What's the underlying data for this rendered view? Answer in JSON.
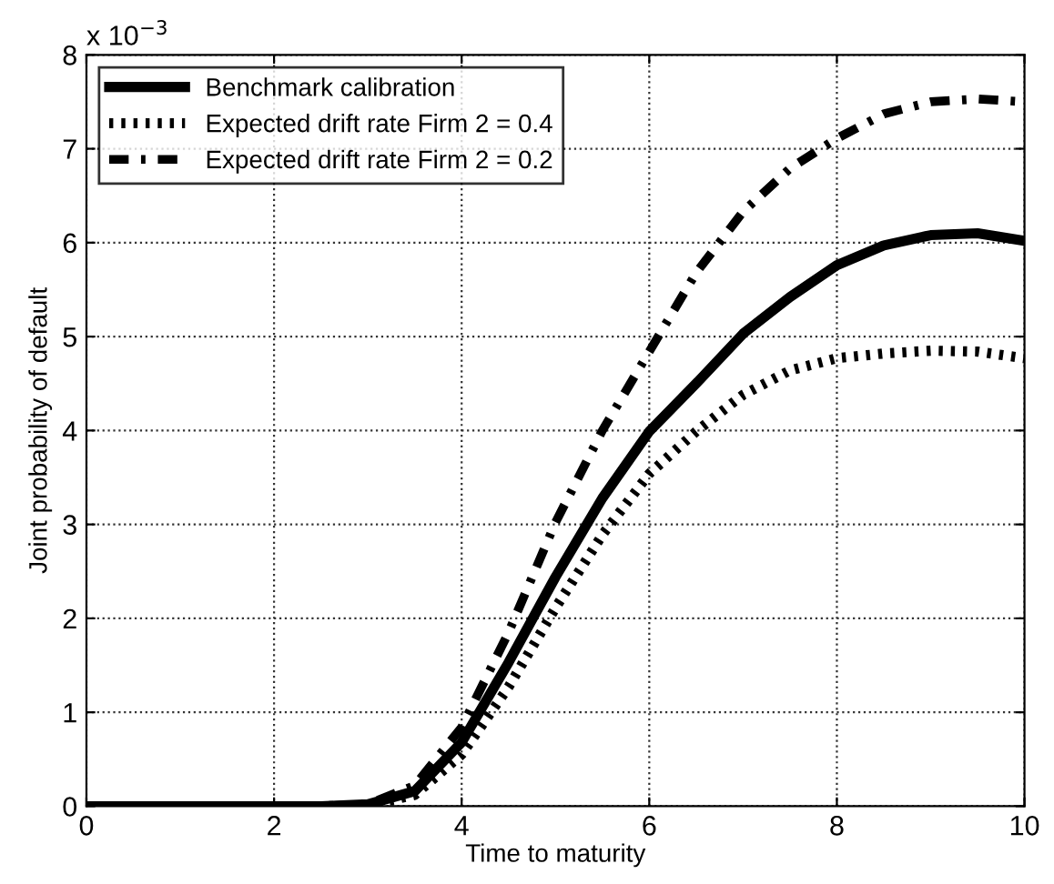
{
  "chart_data": {
    "type": "line",
    "xlabel": "Time to maturity",
    "ylabel": "Joint probability of default",
    "annotations": [
      "x 10$^{−3}$"
    ],
    "x": [
      0,
      1,
      2,
      2.5,
      3,
      3.5,
      4,
      4.5,
      5,
      5.5,
      6,
      6.5,
      7,
      7.5,
      8,
      8.5,
      9,
      9.5,
      10
    ],
    "series": [
      {
        "name": "Benchmark calibration",
        "color": "#000000",
        "line_style": "solid",
        "values": [
          0,
          0,
          0,
          0,
          0.02,
          0.16,
          0.68,
          1.53,
          2.44,
          3.28,
          3.99,
          4.5,
          5.03,
          5.42,
          5.76,
          5.97,
          6.08,
          6.1,
          6.02
        ]
      },
      {
        "name": "Expected drift rate Firm 2 = 0.4",
        "color": "#000000",
        "line_style": "dotted",
        "values": [
          0,
          0,
          0,
          0,
          0.01,
          0.12,
          0.55,
          1.27,
          2.11,
          2.89,
          3.54,
          3.99,
          4.38,
          4.64,
          4.77,
          4.82,
          4.85,
          4.84,
          4.77
        ]
      },
      {
        "name": "Expected drift rate Firm 2 = 0.2",
        "color": "#000000",
        "line_style": "dashdot",
        "values": [
          0,
          0,
          0,
          0,
          0.02,
          0.22,
          0.84,
          1.85,
          3.02,
          4.0,
          4.84,
          5.68,
          6.33,
          6.79,
          7.11,
          7.37,
          7.5,
          7.53,
          7.5
        ]
      }
    ],
    "xlim": [
      0,
      10
    ],
    "xticks": [
      0,
      2,
      4,
      6,
      8,
      10
    ],
    "ylim": [
      0,
      8
    ],
    "yticks": [
      0,
      1,
      2,
      3,
      4,
      5,
      6,
      7,
      8
    ],
    "grid": true,
    "legend": "top left"
  }
}
